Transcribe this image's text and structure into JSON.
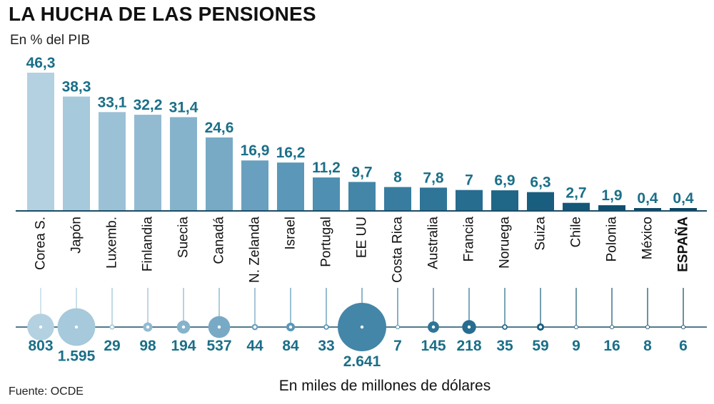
{
  "title": "LA HUCHA DE LAS PENSIONES",
  "subtitle": "En % del PIB",
  "source": "Fuente: OCDE",
  "bubble_caption": "En miles de millones de dólares",
  "colors": {
    "value_text": "#1b6f88",
    "axis": "#1a4d66",
    "country_text": "#111111",
    "bubble_dot": "#ffffff"
  },
  "chart_data": [
    {
      "type": "bar",
      "title": "LA HUCHA DE LAS PENSIONES",
      "ylabel": "En % del PIB",
      "ylim": [
        0,
        46.3
      ],
      "categories": [
        "Corea S.",
        "Japón",
        "Luxemb.",
        "Finlandia",
        "Suecia",
        "Canadá",
        "N. Zelanda",
        "Israel",
        "Portugal",
        "EE UU",
        "Costa Rica",
        "Australia",
        "Francia",
        "Noruega",
        "Suiza",
        "Chile",
        "Polonia",
        "México",
        "ESPAÑA"
      ],
      "values": [
        46.3,
        38.3,
        33.1,
        32.2,
        31.4,
        24.6,
        16.9,
        16.2,
        11.2,
        9.7,
        8,
        7.8,
        7,
        6.9,
        6.3,
        2.7,
        1.9,
        0.4,
        0.4
      ],
      "value_labels": [
        "46,3",
        "38,3",
        "33,1",
        "32,2",
        "31,4",
        "24,6",
        "16,9",
        "16,2",
        "11,2",
        "9,7",
        "8",
        "7,8",
        "7",
        "6,9",
        "6,3",
        "2,7",
        "1,9",
        "0,4",
        "0,4"
      ],
      "bar_colors": [
        "#b3d1e0",
        "#a6c9db",
        "#9bc1d6",
        "#92bbd2",
        "#86b3cc",
        "#78aac6",
        "#69a0bf",
        "#5b97b8",
        "#4f8fb1",
        "#4486a8",
        "#387d9f",
        "#2f7597",
        "#276d8f",
        "#206687",
        "#195e7f",
        "#145778",
        "#0f5071",
        "#0b4a6a",
        "#084565"
      ],
      "highlight": "ESPAÑA"
    },
    {
      "type": "scatter",
      "title": "",
      "xlabel": "En miles de millones de dólares",
      "categories": [
        "Corea S.",
        "Japón",
        "Luxemb.",
        "Finlandia",
        "Suecia",
        "Canadá",
        "N. Zelanda",
        "Israel",
        "Portugal",
        "EE UU",
        "Costa Rica",
        "Australia",
        "Francia",
        "Noruega",
        "Suiza",
        "Chile",
        "Polonia",
        "México",
        "ESPAÑA"
      ],
      "values": [
        803,
        1595,
        29,
        98,
        194,
        537,
        44,
        84,
        33,
        2641,
        7,
        145,
        218,
        35,
        59,
        9,
        16,
        8,
        6
      ],
      "value_labels": [
        "803",
        "1.595",
        "29",
        "98",
        "194",
        "537",
        "44",
        "84",
        "33",
        "2.641",
        "7",
        "145",
        "218",
        "35",
        "59",
        "9",
        "16",
        "8",
        "6"
      ],
      "bubble_colors": [
        "#b3d1e0",
        "#a6c9db",
        "#9bc1d6",
        "#92bbd2",
        "#86b3cc",
        "#78aac6",
        "#69a0bf",
        "#5b97b8",
        "#4f8fb1",
        "#4486a8",
        "#387d9f",
        "#2f7597",
        "#276d8f",
        "#206687",
        "#195e7f",
        "#145778",
        "#0f5071",
        "#0b4a6a",
        "#084565"
      ]
    }
  ]
}
